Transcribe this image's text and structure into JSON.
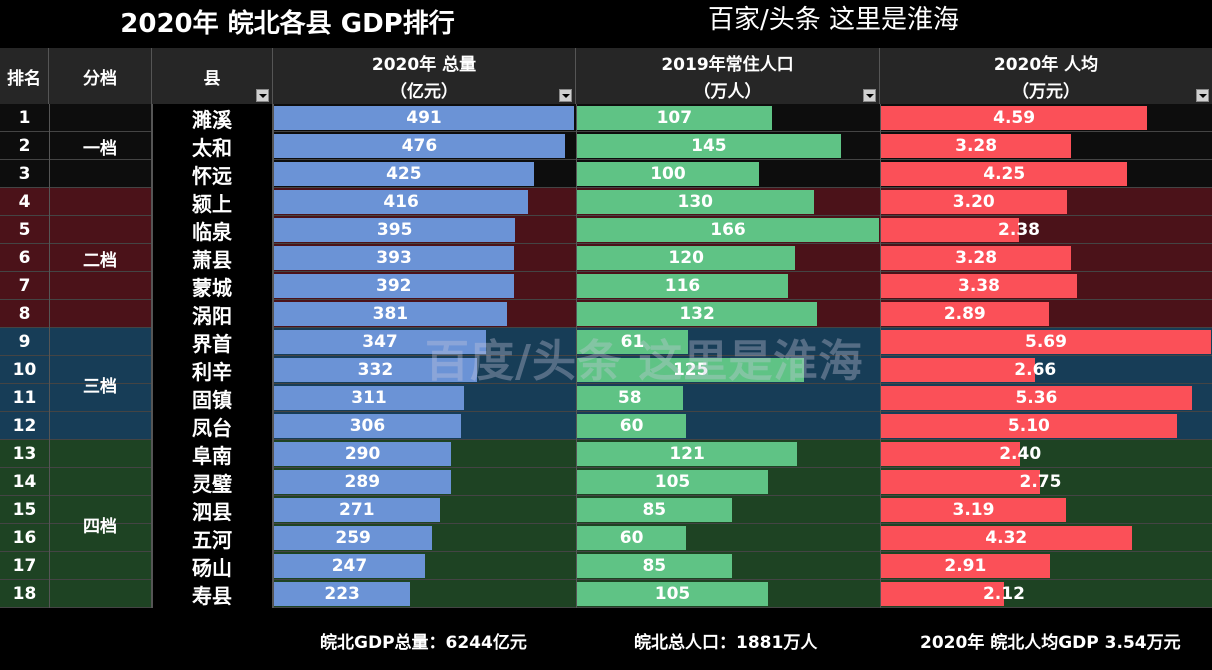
{
  "header": {
    "title": "2020年  皖北各县 GDP排行",
    "subtitle": "百家/头条  这里是淮海"
  },
  "columns": {
    "rank": "排名",
    "tier": "分档",
    "county": "县",
    "gdp_l1": "2020年 总量",
    "gdp_l2": "（亿元）",
    "pop_l1": "2019年常住人口",
    "pop_l2": "（万人）",
    "pc_l1": "2020年 人均",
    "pc_l2": "（万元）"
  },
  "tiers": [
    {
      "label": "一档",
      "start": 0,
      "count": 3,
      "color": "#0d0d0d"
    },
    {
      "label": "二档",
      "start": 3,
      "count": 5,
      "color": "#4b1219"
    },
    {
      "label": "三档",
      "start": 8,
      "count": 4,
      "color": "#173d57"
    },
    {
      "label": "四档",
      "start": 12,
      "count": 6,
      "color": "#1e4323"
    }
  ],
  "chart_data": {
    "type": "table",
    "rows": [
      {
        "rank": "1",
        "county": "濉溪",
        "gdp": 491,
        "pop": 107,
        "pc": "4.59"
      },
      {
        "rank": "2",
        "county": "太和",
        "gdp": 476,
        "pop": 145,
        "pc": "3.28"
      },
      {
        "rank": "3",
        "county": "怀远",
        "gdp": 425,
        "pop": 100,
        "pc": "4.25"
      },
      {
        "rank": "4",
        "county": "颍上",
        "gdp": 416,
        "pop": 130,
        "pc": "3.20"
      },
      {
        "rank": "5",
        "county": "临泉",
        "gdp": 395,
        "pop": 166,
        "pc": "2.38"
      },
      {
        "rank": "6",
        "county": "萧县",
        "gdp": 393,
        "pop": 120,
        "pc": "3.28"
      },
      {
        "rank": "7",
        "county": "蒙城",
        "gdp": 392,
        "pop": 116,
        "pc": "3.38"
      },
      {
        "rank": "8",
        "county": "涡阳",
        "gdp": 381,
        "pop": 132,
        "pc": "2.89"
      },
      {
        "rank": "9",
        "county": "界首",
        "gdp": 347,
        "pop": 61,
        "pc": "5.69"
      },
      {
        "rank": "10",
        "county": "利辛",
        "gdp": 332,
        "pop": 125,
        "pc": "2.66"
      },
      {
        "rank": "11",
        "county": "固镇",
        "gdp": 311,
        "pop": 58,
        "pc": "5.36"
      },
      {
        "rank": "12",
        "county": "凤台",
        "gdp": 306,
        "pop": 60,
        "pc": "5.10"
      },
      {
        "rank": "13",
        "county": "阜南",
        "gdp": 290,
        "pop": 121,
        "pc": "2.40"
      },
      {
        "rank": "14",
        "county": "灵璧",
        "gdp": 289,
        "pop": 105,
        "pc": "2.75"
      },
      {
        "rank": "15",
        "county": "泗县",
        "gdp": 271,
        "pop": 85,
        "pc": "3.19"
      },
      {
        "rank": "16",
        "county": "五河",
        "gdp": 259,
        "pop": 60,
        "pc": "4.32"
      },
      {
        "rank": "17",
        "county": "砀山",
        "gdp": 247,
        "pop": 85,
        "pc": "2.91"
      },
      {
        "rank": "18",
        "county": "寿县",
        "gdp": 223,
        "pop": 105,
        "pc": "2.12"
      }
    ],
    "bar_max": {
      "gdp": 491,
      "pop": 166,
      "pc": 5.69
    }
  },
  "watermark": "百度/头条  这里是淮海",
  "footer": {
    "total_gdp": "皖北GDP总量：6244亿元",
    "total_pop": "皖北总人口：1881万人",
    "per_capita": "2020年 皖北人均GDP 3.54万元"
  },
  "colors": {
    "gdp_bar": "#6b93d6",
    "pop_bar": "#5fc385",
    "pc_bar": "#fb5058"
  }
}
